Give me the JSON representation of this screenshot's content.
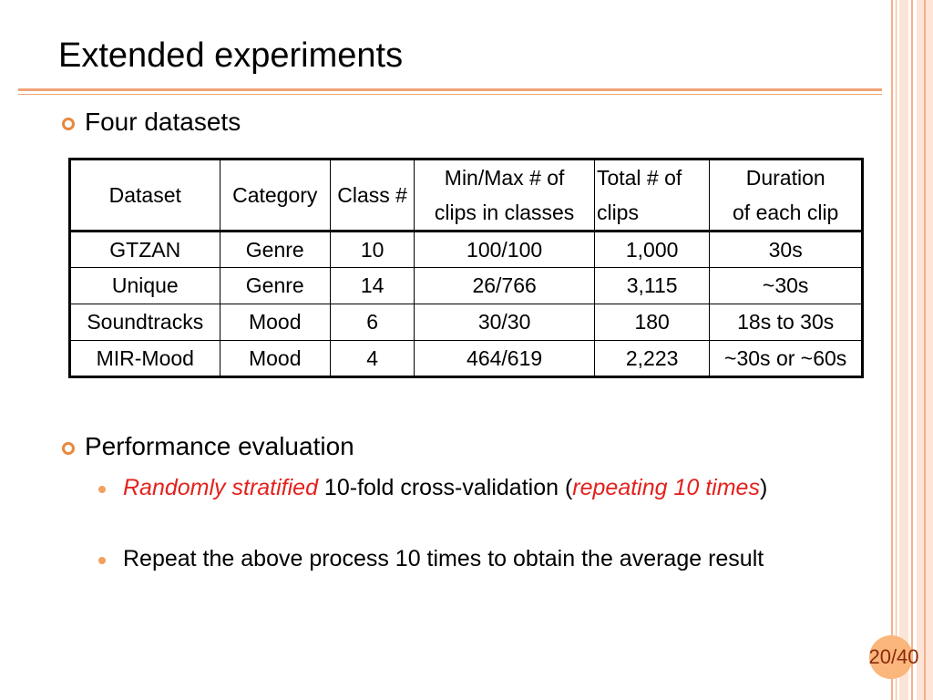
{
  "slide": {
    "title": "Extended experiments",
    "bullet1": "Four datasets",
    "bullet2": "Performance evaluation",
    "sub1": {
      "em1": "Randomly stratified",
      "text1": " 10-fold cross-validation (",
      "em2": "repeating 10 times",
      "text2": ")"
    },
    "sub2": "Repeat the above process 10 times to obtain the average result",
    "page_number": "20/40"
  },
  "table": {
    "headers": {
      "dataset": "Dataset",
      "category": "Category",
      "class_count": "Class #",
      "minmax_line1": "Min/Max # of",
      "minmax_line2": "clips in classes",
      "total_line1": "Total # of",
      "total_line2": "clips",
      "duration_line1": "Duration",
      "duration_line2": "of each clip"
    },
    "rows": [
      {
        "dataset": "GTZAN",
        "category": "Genre",
        "classes": "10",
        "minmax": "100/100",
        "total": "1,000",
        "duration": "30s"
      },
      {
        "dataset": "Unique",
        "category": "Genre",
        "classes": "14",
        "minmax": "26/766",
        "total": "3,115",
        "duration": "~30s"
      },
      {
        "dataset": "Soundtracks",
        "category": "Mood",
        "classes": "6",
        "minmax": "30/30",
        "total": "180",
        "duration": "18s to 30s"
      },
      {
        "dataset": "MIR-Mood",
        "category": "Mood",
        "classes": "4",
        "minmax": "464/619",
        "total": "2,223",
        "duration": "~30s or ~60s"
      }
    ]
  },
  "colors": {
    "accent": "#e8883e",
    "emphasis": "#e3211c",
    "page_number": "#8a2a0c"
  }
}
